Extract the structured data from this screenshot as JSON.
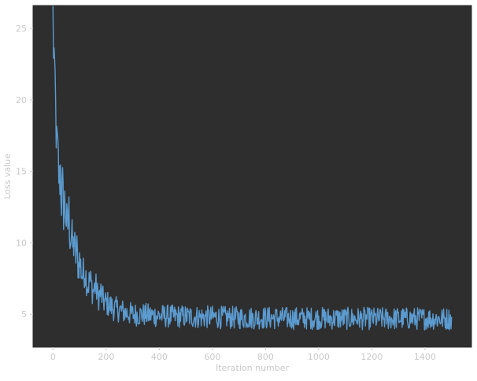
{
  "chart_data": {
    "type": "line",
    "title": "",
    "xlabel": "Iteration number",
    "ylabel": "Loss value",
    "xlim": [
      -75,
      1575
    ],
    "ylim": [
      2.7,
      26.6
    ],
    "x_ticks": [
      0,
      200,
      400,
      600,
      800,
      1000,
      1200,
      1400
    ],
    "y_ticks": [
      5,
      10,
      15,
      20,
      25
    ],
    "grid": false,
    "legend": "none",
    "colors": {
      "plot_background": "#2e2e2e",
      "line": "#5b9bd0",
      "axis_text": "#c8c8c8",
      "frame": "#2e2e2e"
    },
    "series": [
      {
        "points": [
          [
            0,
            25.5
          ],
          [
            2,
            24.2
          ],
          [
            4,
            22.8
          ],
          [
            6,
            20.2
          ],
          [
            8,
            21.0
          ],
          [
            10,
            19.0
          ],
          [
            12,
            18.3
          ],
          [
            14,
            16.4
          ],
          [
            16,
            16.8
          ],
          [
            18,
            15.9
          ],
          [
            20,
            15.5
          ],
          [
            24,
            14.2
          ],
          [
            28,
            15.1
          ],
          [
            32,
            13.0
          ],
          [
            36,
            13.8
          ],
          [
            40,
            12.3
          ],
          [
            45,
            12.9
          ],
          [
            50,
            11.6
          ],
          [
            55,
            11.0
          ],
          [
            60,
            12.1
          ],
          [
            65,
            10.3
          ],
          [
            70,
            10.6
          ],
          [
            75,
            9.6
          ],
          [
            80,
            10.1
          ],
          [
            85,
            9.0
          ],
          [
            90,
            9.5
          ],
          [
            95,
            8.3
          ],
          [
            100,
            8.8
          ],
          [
            110,
            7.7
          ],
          [
            120,
            8.1
          ],
          [
            130,
            7.0
          ],
          [
            140,
            7.4
          ],
          [
            150,
            6.6
          ],
          [
            160,
            7.0
          ],
          [
            170,
            6.2
          ],
          [
            180,
            6.5
          ],
          [
            190,
            5.9
          ],
          [
            200,
            5.8
          ],
          [
            215,
            5.6
          ],
          [
            230,
            5.4
          ],
          [
            250,
            5.3
          ],
          [
            275,
            5.1
          ],
          [
            300,
            5.0
          ],
          [
            350,
            4.95
          ],
          [
            400,
            4.9
          ],
          [
            450,
            4.85
          ],
          [
            500,
            4.85
          ],
          [
            550,
            4.8
          ],
          [
            600,
            4.8
          ],
          [
            700,
            4.75
          ],
          [
            800,
            4.75
          ],
          [
            900,
            4.72
          ],
          [
            1000,
            4.72
          ],
          [
            1100,
            4.7
          ],
          [
            1200,
            4.7
          ],
          [
            1300,
            4.7
          ],
          [
            1400,
            4.7
          ],
          [
            1500,
            4.68
          ]
        ]
      }
    ]
  }
}
